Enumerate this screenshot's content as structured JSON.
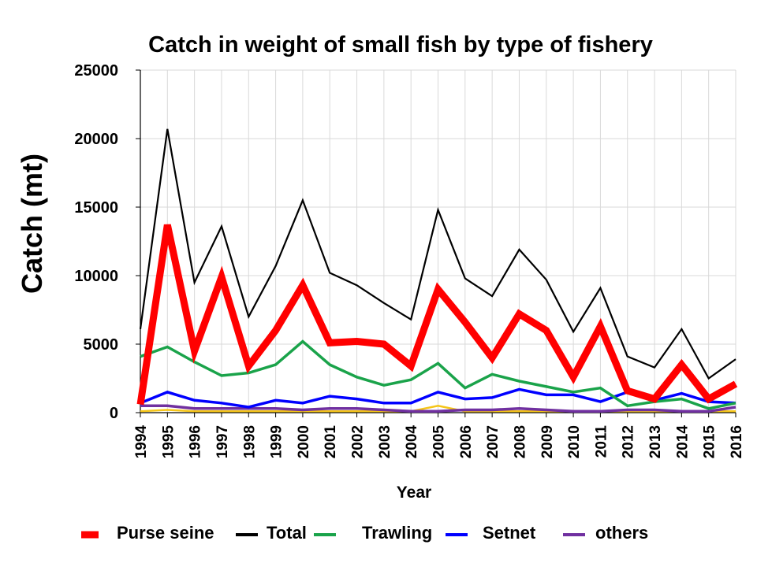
{
  "chart_data": {
    "type": "line",
    "title": "Catch in weight of small fish by type of fishery",
    "xlabel": "Year",
    "ylabel": "Catch (mt)",
    "ylim": [
      0,
      25000
    ],
    "yticks": [
      "0",
      "5000",
      "10000",
      "15000",
      "20000",
      "25000"
    ],
    "grid": true,
    "legend_position": "bottom",
    "categories": [
      "1994",
      "1995",
      "1996",
      "1997",
      "1998",
      "1999",
      "2000",
      "2001",
      "2002",
      "2003",
      "2004",
      "2005",
      "2006",
      "2007",
      "2008",
      "2009",
      "2010",
      "2011",
      "2012",
      "2013",
      "2014",
      "2015",
      "2016"
    ],
    "series": [
      {
        "name": "Purse seine",
        "color": "#ff0000",
        "values": [
          600,
          13700,
          4500,
          9900,
          3400,
          6000,
          9300,
          5100,
          5200,
          5000,
          3400,
          9000,
          6600,
          4000,
          7200,
          6000,
          2600,
          6300,
          1600,
          1000,
          3500,
          1000,
          2100
        ]
      },
      {
        "name": "Total",
        "color": "#000000",
        "values": [
          6100,
          20700,
          9500,
          13600,
          7000,
          10700,
          15500,
          10200,
          9300,
          8000,
          6800,
          14800,
          9800,
          8500,
          11900,
          9700,
          5900,
          9100,
          4100,
          3300,
          6100,
          2500,
          3900
        ]
      },
      {
        "name": "Trawling",
        "color": "#1aa34a",
        "values": [
          4100,
          4800,
          3700,
          2700,
          2900,
          3500,
          5200,
          3500,
          2600,
          2000,
          2400,
          3600,
          1800,
          2800,
          2300,
          1900,
          1500,
          1800,
          500,
          800,
          1000,
          300,
          700
        ]
      },
      {
        "name": "Setnet",
        "color": "#0000ff",
        "values": [
          700,
          1500,
          900,
          700,
          400,
          900,
          700,
          1200,
          1000,
          700,
          700,
          1500,
          1000,
          1100,
          1700,
          1300,
          1300,
          800,
          1500,
          900,
          1400,
          800,
          700
        ]
      },
      {
        "name": "others",
        "color": "#7030a0",
        "values": [
          500,
          500,
          300,
          300,
          300,
          300,
          200,
          300,
          300,
          200,
          100,
          100,
          200,
          200,
          300,
          200,
          100,
          100,
          200,
          200,
          100,
          100,
          400
        ]
      },
      {
        "color": "#f5c518",
        "values": [
          100,
          200,
          100,
          100,
          100,
          100,
          100,
          100,
          100,
          100,
          100,
          500,
          100,
          100,
          100,
          100,
          100,
          100,
          100,
          100,
          100,
          100,
          100
        ]
      }
    ]
  }
}
